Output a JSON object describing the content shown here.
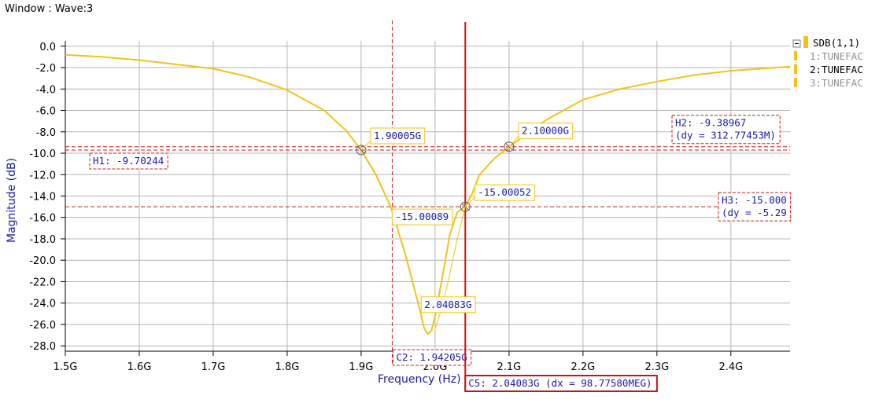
{
  "window": {
    "title": "Window : Wave:3"
  },
  "colors": {
    "trace": "#f2c318",
    "marker": "#c81e1e",
    "cursor": "#d01010",
    "label_text": "#1a1aa8",
    "grid": "#b4b4b4"
  },
  "chart_data": {
    "type": "line",
    "xlabel": "Frequency (Hz)",
    "ylabel": "Magnitude (dB)",
    "xlim": [
      1.5,
      2.48
    ],
    "ylim": [
      -28.5,
      0.5
    ],
    "x_ticks": [
      {
        "v": 1.5,
        "label": "1.5G"
      },
      {
        "v": 1.6,
        "label": "1.6G"
      },
      {
        "v": 1.7,
        "label": "1.7G"
      },
      {
        "v": 1.8,
        "label": "1.8G"
      },
      {
        "v": 1.9,
        "label": "1.9G"
      },
      {
        "v": 2.0,
        "label": "2.0G"
      },
      {
        "v": 2.1,
        "label": "2.1G"
      },
      {
        "v": 2.2,
        "label": "2.2G"
      },
      {
        "v": 2.3,
        "label": "2.3G"
      },
      {
        "v": 2.4,
        "label": "2.4G"
      }
    ],
    "y_ticks": [
      {
        "v": 0,
        "label": "0.0"
      },
      {
        "v": -2,
        "label": "-2.0"
      },
      {
        "v": -4,
        "label": "-4.0"
      },
      {
        "v": -6,
        "label": "-6.0"
      },
      {
        "v": -8,
        "label": "-8.0"
      },
      {
        "v": -10,
        "label": "-10.0"
      },
      {
        "v": -12,
        "label": "-12.0"
      },
      {
        "v": -14,
        "label": "-14.0"
      },
      {
        "v": -16,
        "label": "-16.0"
      },
      {
        "v": -18,
        "label": "-18.0"
      },
      {
        "v": -20,
        "label": "-20.0"
      },
      {
        "v": -22,
        "label": "-22.0"
      },
      {
        "v": -24,
        "label": "-24.0"
      },
      {
        "v": -26,
        "label": "-26.0"
      },
      {
        "v": -28,
        "label": "-28.0"
      }
    ],
    "grid": true,
    "legend": {
      "group": "SDB(1,1)",
      "items": [
        {
          "label": "1:TUNEFAC",
          "active": false
        },
        {
          "label": "2:TUNEFAC",
          "active": true
        },
        {
          "label": "3:TUNEFAC",
          "active": false
        }
      ]
    },
    "series": [
      {
        "name": "2:TUNEFAC",
        "x": [
          1.5,
          1.55,
          1.6,
          1.65,
          1.7,
          1.75,
          1.8,
          1.85,
          1.88,
          1.9,
          1.92,
          1.94,
          1.96,
          1.98,
          1.985,
          1.99,
          1.995,
          2.0,
          2.01,
          2.02,
          2.03,
          2.04083,
          2.05,
          2.06,
          2.08,
          2.1,
          2.15,
          2.2,
          2.25,
          2.3,
          2.35,
          2.4,
          2.48
        ],
        "y": [
          -0.8,
          -1.0,
          -1.3,
          -1.7,
          -2.1,
          -2.9,
          -4.1,
          -6.0,
          -7.9,
          -9.7,
          -12.0,
          -15.0,
          -19.5,
          -24.8,
          -26.3,
          -26.9,
          -26.6,
          -25.2,
          -21.5,
          -17.6,
          -15.5,
          -15.0,
          -13.8,
          -12.0,
          -10.5,
          -9.4,
          -6.9,
          -5.0,
          -4.0,
          -3.3,
          -2.7,
          -2.3,
          -1.9
        ]
      },
      {
        "name": "3:TUNEFAC",
        "x": [
          2.0,
          2.01,
          2.02,
          2.03,
          2.04083
        ],
        "y": [
          -26.4,
          -24.3,
          -21.2,
          -18.0,
          -15.0
        ]
      }
    ],
    "horizontal_markers": [
      {
        "name": "H1",
        "value": -9.70244,
        "label": "H1: -9.70244"
      },
      {
        "name": "H2",
        "value": -9.38967,
        "label": "H2: -9.38967",
        "delta": "(dy = 312.77453M)"
      },
      {
        "name": "H3",
        "value": -15.0,
        "label": "H3: -15.000",
        "delta": "(dy = -5.29"
      }
    ],
    "vertical_markers": [
      {
        "name": "C2",
        "value": 1.94205,
        "label": "C2: 1.94205G"
      },
      {
        "name": "C5",
        "value": 2.04083,
        "label": "C5: 2.04083G (dx = 98.77580MEG)"
      }
    ],
    "point_markers": [
      {
        "x": 1.90005,
        "y": -9.70244,
        "label": "1.90005G"
      },
      {
        "x": 2.1,
        "y": -9.38967,
        "label": "2.10000G"
      },
      {
        "x": 2.04083,
        "y": -15.00052,
        "label": "-15.00052"
      },
      {
        "x": 1.94205,
        "y": -15.00089,
        "label": "-15.00089"
      },
      {
        "x": 2.04083,
        "y": -24.3,
        "label": "2.04083G"
      }
    ]
  }
}
